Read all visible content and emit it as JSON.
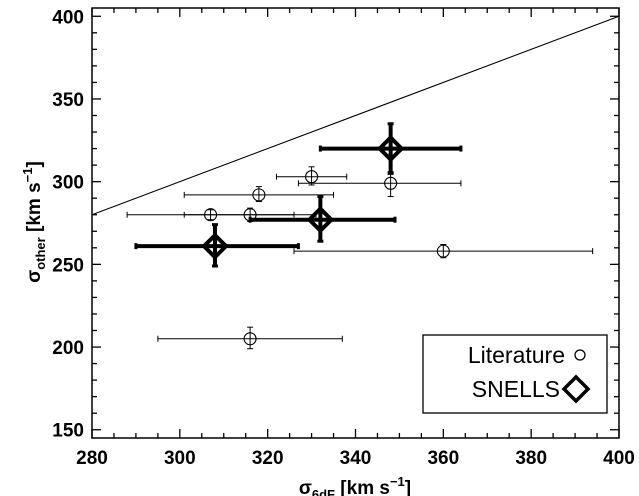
{
  "chart_data": {
    "type": "scatter",
    "title": "",
    "xlabel": {
      "symbol": "σ",
      "subscript": "6dF",
      "units": " [km s",
      "exponent": "−1",
      "close": "]"
    },
    "ylabel": {
      "symbol": "σ",
      "subscript": "other",
      "units": " [km s",
      "exponent": "−1",
      "close": "]"
    },
    "xlim": [
      280,
      400
    ],
    "ylim": [
      145,
      405
    ],
    "x_ticks": [
      280,
      300,
      320,
      340,
      360,
      380,
      400
    ],
    "y_ticks": [
      150,
      200,
      250,
      300,
      350,
      400
    ],
    "grid": false,
    "legend_position": "bottom-right",
    "reference_line": {
      "x": [
        280,
        400
      ],
      "y": [
        280,
        400
      ],
      "label": ""
    },
    "series": [
      {
        "name": "Literature",
        "marker": "circle",
        "points": [
          {
            "x": 307,
            "y": 280,
            "x_err": [
              288,
              326
            ],
            "y_err": [
              277,
              283
            ]
          },
          {
            "x": 316,
            "y": 280,
            "x_err": [
              301,
              331
            ],
            "y_err": [
              276,
              284
            ]
          },
          {
            "x": 318,
            "y": 292,
            "x_err": [
              301,
              335
            ],
            "y_err": [
              288,
              297
            ]
          },
          {
            "x": 330,
            "y": 303,
            "x_err": [
              322,
              338
            ],
            "y_err": [
              298,
              309
            ]
          },
          {
            "x": 348,
            "y": 299,
            "x_err": [
              327,
              364
            ],
            "y_err": [
              291,
              306
            ]
          },
          {
            "x": 360,
            "y": 258,
            "x_err": [
              326,
              394
            ],
            "y_err": [
              254,
              262
            ]
          },
          {
            "x": 316,
            "y": 205,
            "x_err": [
              295,
              337
            ],
            "y_err": [
              199,
              212
            ]
          }
        ]
      },
      {
        "name": "SNELLS",
        "marker": "diamond",
        "points": [
          {
            "x": 308,
            "y": 261,
            "x_err": [
              290,
              327
            ],
            "y_err": [
              249,
              274
            ]
          },
          {
            "x": 332,
            "y": 277,
            "x_err": [
              316,
              349
            ],
            "y_err": [
              264,
              291
            ]
          },
          {
            "x": 348,
            "y": 320,
            "x_err": [
              332,
              364
            ],
            "y_err": [
              305,
              335
            ]
          }
        ]
      }
    ]
  }
}
